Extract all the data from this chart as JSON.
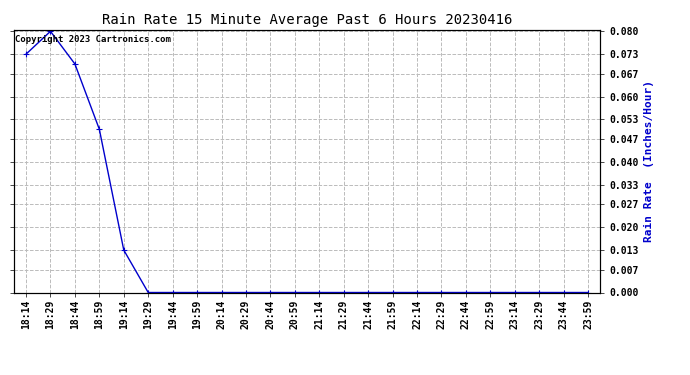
{
  "title": "Rain Rate 15 Minute Average Past 6 Hours 20230416",
  "ylabel": "Rain Rate  (Inches/Hour)",
  "copyright_text": "Copyright 2023 Cartronics.com",
  "line_color": "#0000cc",
  "background_color": "#ffffff",
  "grid_color": "#bbbbbb",
  "title_color": "#000000",
  "ylabel_color": "#0000cc",
  "x_labels": [
    "18:14",
    "18:29",
    "18:44",
    "18:59",
    "19:14",
    "19:29",
    "19:44",
    "19:59",
    "20:14",
    "20:29",
    "20:44",
    "20:59",
    "21:14",
    "21:29",
    "21:44",
    "21:59",
    "22:14",
    "22:29",
    "22:44",
    "22:59",
    "23:14",
    "23:29",
    "23:44",
    "23:59"
  ],
  "y_values": [
    0.073,
    0.08,
    0.07,
    0.05,
    0.013,
    0.0,
    0.0,
    0.0,
    0.0,
    0.0,
    0.0,
    0.0,
    0.0,
    0.0,
    0.0,
    0.0,
    0.0,
    0.0,
    0.0,
    0.0,
    0.0,
    0.0,
    0.0,
    0.0
  ],
  "yticks": [
    0.0,
    0.007,
    0.013,
    0.02,
    0.027,
    0.033,
    0.04,
    0.047,
    0.053,
    0.06,
    0.067,
    0.073,
    0.08
  ],
  "ylim_min": 0.0,
  "ylim_max": 0.08,
  "marker": "+",
  "marker_size": 5,
  "line_width": 1.0,
  "title_fontsize": 10,
  "tick_fontsize": 7,
  "copyright_fontsize": 6.5
}
